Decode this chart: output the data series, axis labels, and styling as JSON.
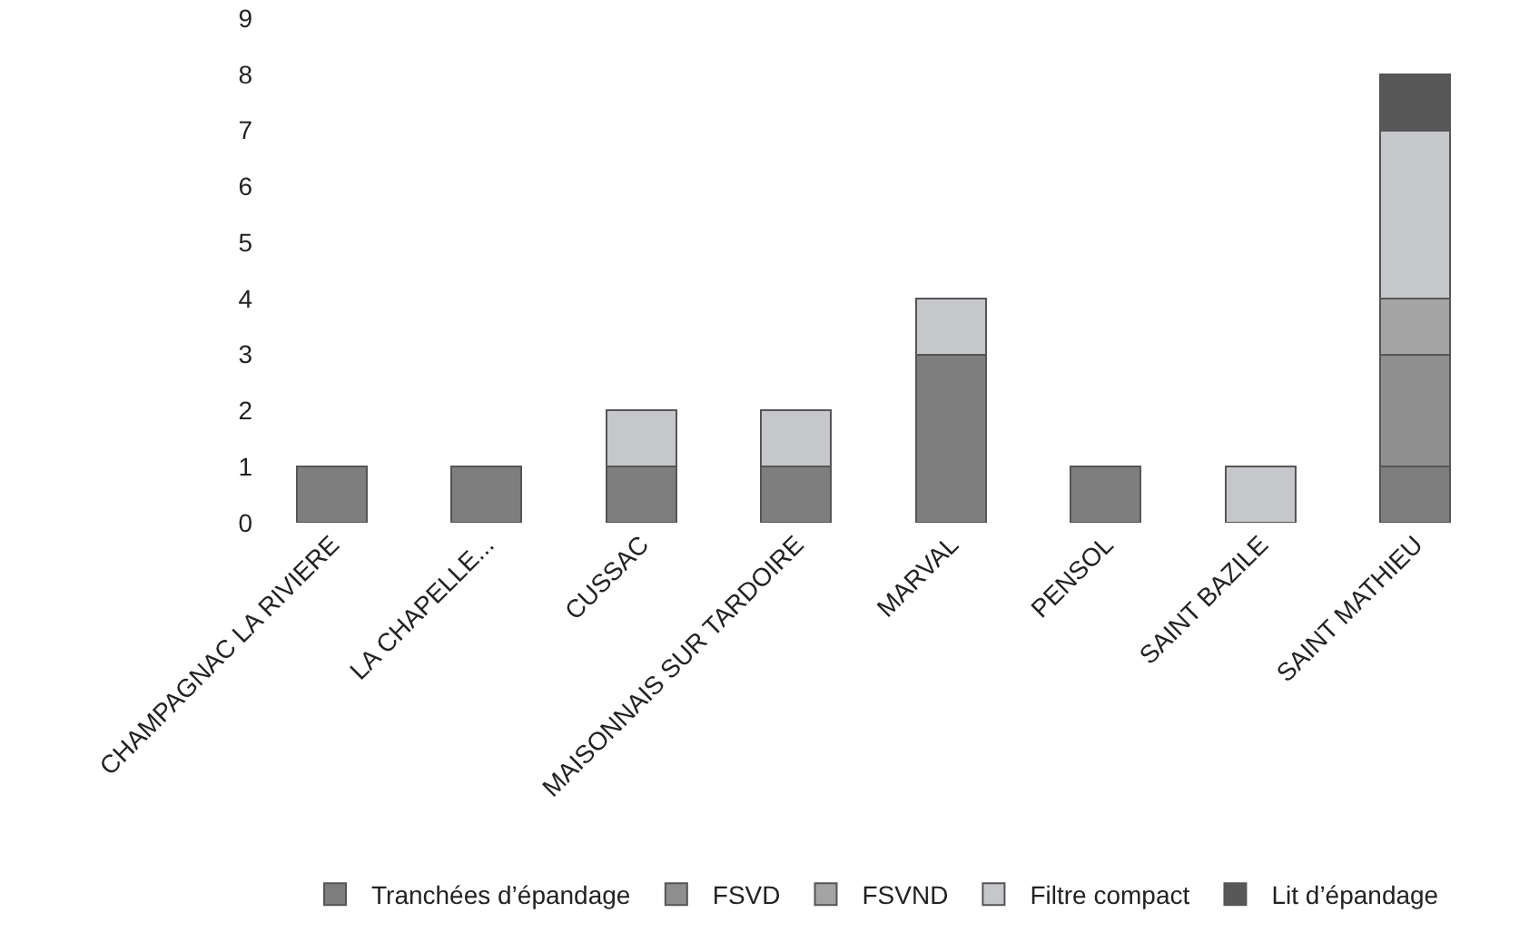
{
  "chart_data": {
    "type": "bar",
    "stacked": true,
    "categories": [
      "CHAMPAGNAC LA RIVIERE",
      "LA CHAPELLE...",
      "CUSSAC",
      "MAISONNAIS SUR TARDOIRE",
      "MARVAL",
      "PENSOL",
      "SAINT BAZILE",
      "SAINT MATHIEU"
    ],
    "series": [
      {
        "name": "Tranchées d’épandage",
        "color": "#7e7e7e",
        "values": [
          1,
          1,
          1,
          1,
          3,
          1,
          null,
          1
        ]
      },
      {
        "name": "FSVD",
        "color": "#8f8f8f",
        "values": [
          null,
          null,
          null,
          null,
          null,
          null,
          null,
          2
        ]
      },
      {
        "name": "FSVND",
        "color": "#a4a4a4",
        "values": [
          null,
          null,
          null,
          null,
          null,
          null,
          null,
          1
        ]
      },
      {
        "name": "Filtre compact",
        "color": "#c6c7cb",
        "values": [
          null,
          null,
          1,
          1,
          1,
          null,
          1,
          3
        ]
      },
      {
        "name": "Lit d’épandage",
        "color": "#585858",
        "values": [
          null,
          null,
          null,
          null,
          null,
          null,
          null,
          1
        ]
      }
    ],
    "ylim": [
      0,
      9
    ],
    "yticks": [
      0,
      1,
      2,
      3,
      4,
      5,
      6,
      7,
      8,
      9
    ],
    "grid": false,
    "legend": "bottom"
  }
}
